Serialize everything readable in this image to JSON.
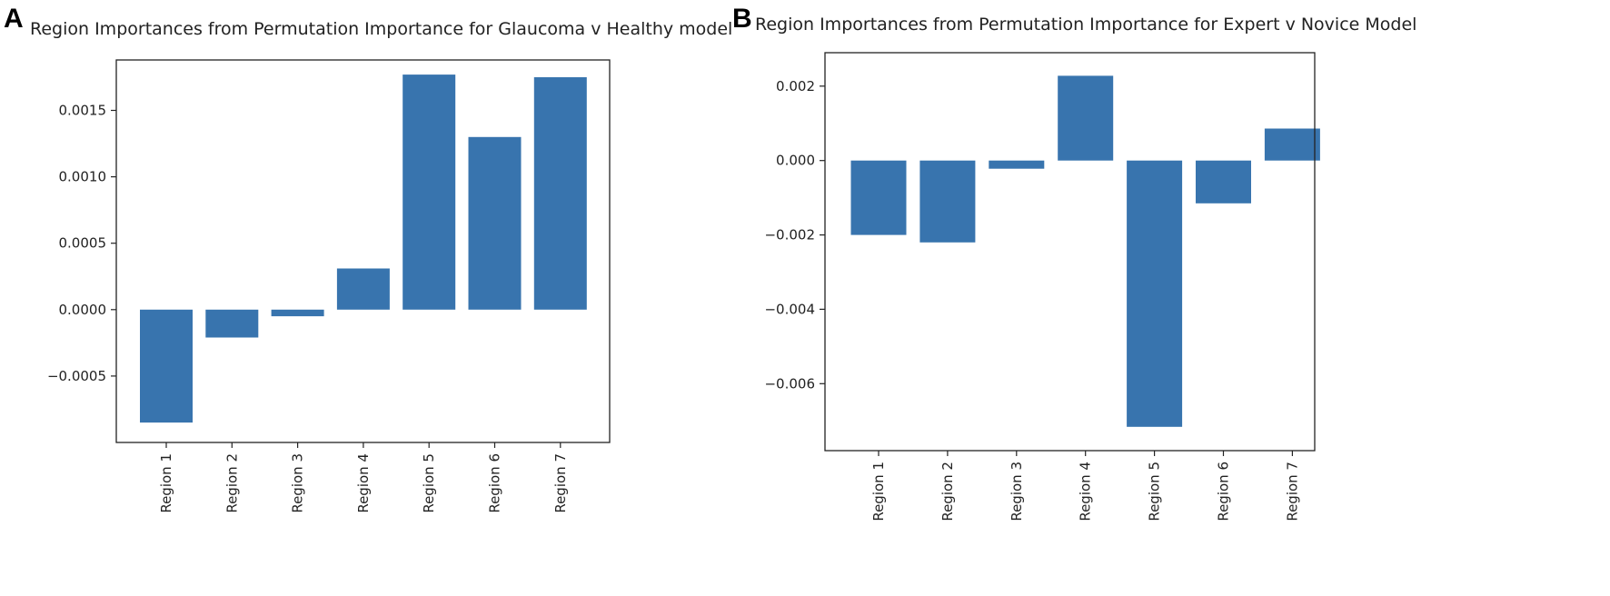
{
  "chart_data": [
    {
      "type": "bar",
      "panel_label": "A",
      "title": "Region Importances from Permutation Importance for Glaucoma v Healthy model",
      "xlabel": "",
      "ylabel": "",
      "categories": [
        "Region 1",
        "Region 2",
        "Region 3",
        "Region 4",
        "Region 5",
        "Region 6",
        "Region 7"
      ],
      "values": [
        -0.00085,
        -0.00021,
        -5e-05,
        0.00031,
        0.00177,
        0.0013,
        0.00175
      ],
      "ylim": [
        -0.001,
        0.00188
      ],
      "yticks": [
        -0.0005,
        0.0,
        0.0005,
        0.001,
        0.0015
      ],
      "ytick_labels": [
        "−0.0005",
        "0.0000",
        "0.0005",
        "0.0010",
        "0.0015"
      ],
      "bar_color": "#3874ae",
      "grid": false
    },
    {
      "type": "bar",
      "panel_label": "B",
      "title": "Region Importances from Permutation Importance for Expert v Novice Model",
      "xlabel": "",
      "ylabel": "",
      "categories": [
        "Region 1",
        "Region 2",
        "Region 3",
        "Region 4",
        "Region 5",
        "Region 6",
        "Region 7"
      ],
      "values": [
        -0.002,
        -0.0022,
        -0.00022,
        0.00228,
        -0.00716,
        -0.00115,
        0.00086
      ],
      "ylim": [
        -0.0078,
        0.0029
      ],
      "yticks": [
        -0.006,
        -0.004,
        -0.002,
        0.0,
        0.002
      ],
      "ytick_labels": [
        "−0.006",
        "−0.004",
        "−0.002",
        "0.000",
        "0.002"
      ],
      "bar_color": "#3874ae",
      "grid": false
    }
  ]
}
